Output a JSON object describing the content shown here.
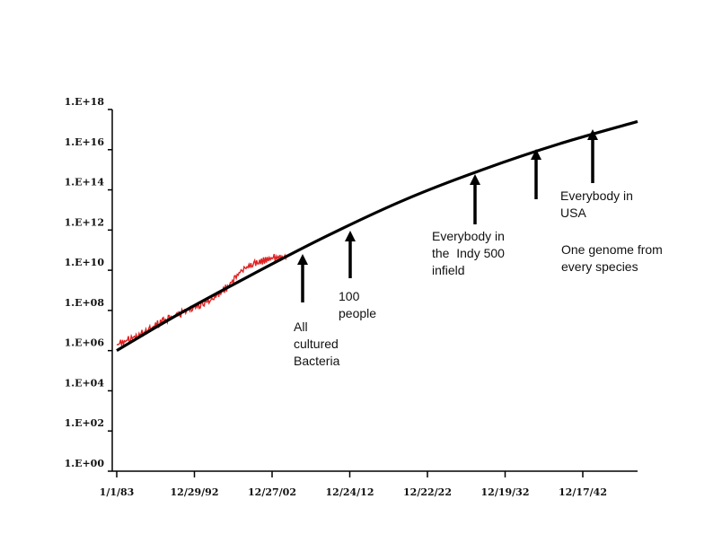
{
  "chart_data": {
    "type": "line",
    "title": "",
    "xlabel": "",
    "ylabel": "",
    "y_scale": "log",
    "grid": false,
    "legend": "none",
    "x_tick_labels": [
      "1/1/83",
      "12/29/92",
      "12/27/02",
      "12/24/12",
      "12/22/22",
      "12/19/32",
      "12/17/42"
    ],
    "y_tick_labels": [
      "1.E+00",
      "1.E+02",
      "1.E+04",
      "1.E+06",
      "1.E+08",
      "1.E+10",
      "1.E+12",
      "1.E+14",
      "1.E+16",
      "1.E+18"
    ],
    "xlim": [
      1983,
      2050
    ],
    "ylim_log10": [
      0,
      18
    ],
    "series": [
      {
        "color": "#000000",
        "x": [
          1983,
          1990,
          2000,
          2010,
          2020,
          2030,
          2040,
          2050
        ],
        "log10_y": [
          6.0,
          7.6,
          9.7,
          11.7,
          13.5,
          15.0,
          16.3,
          17.4
        ]
      },
      {
        "color": "#e02020",
        "x": [
          1983,
          1986,
          1989,
          1992,
          1995,
          1997,
          1999,
          2001,
          2003,
          2005
        ],
        "log10_y": [
          6.3,
          6.8,
          7.5,
          8.0,
          8.5,
          9.1,
          10.0,
          10.4,
          10.6,
          10.7
        ]
      }
    ],
    "annotations": [
      {
        "id": "bacteria",
        "lines": [
          "All",
          "cultured",
          "Bacteria"
        ],
        "x": 2007
      },
      {
        "id": "people",
        "lines": [
          "100",
          "people"
        ],
        "x": 2012
      },
      {
        "id": "indy",
        "lines": [
          "Everybody in",
          "the  Indy 500",
          "infield"
        ],
        "x": 2026
      },
      {
        "id": "usa",
        "lines": [
          "Everybody in",
          "USA"
        ],
        "x": 2036
      },
      {
        "id": "species",
        "lines": [
          "One genome from",
          "every species"
        ],
        "x": 2044
      }
    ]
  }
}
